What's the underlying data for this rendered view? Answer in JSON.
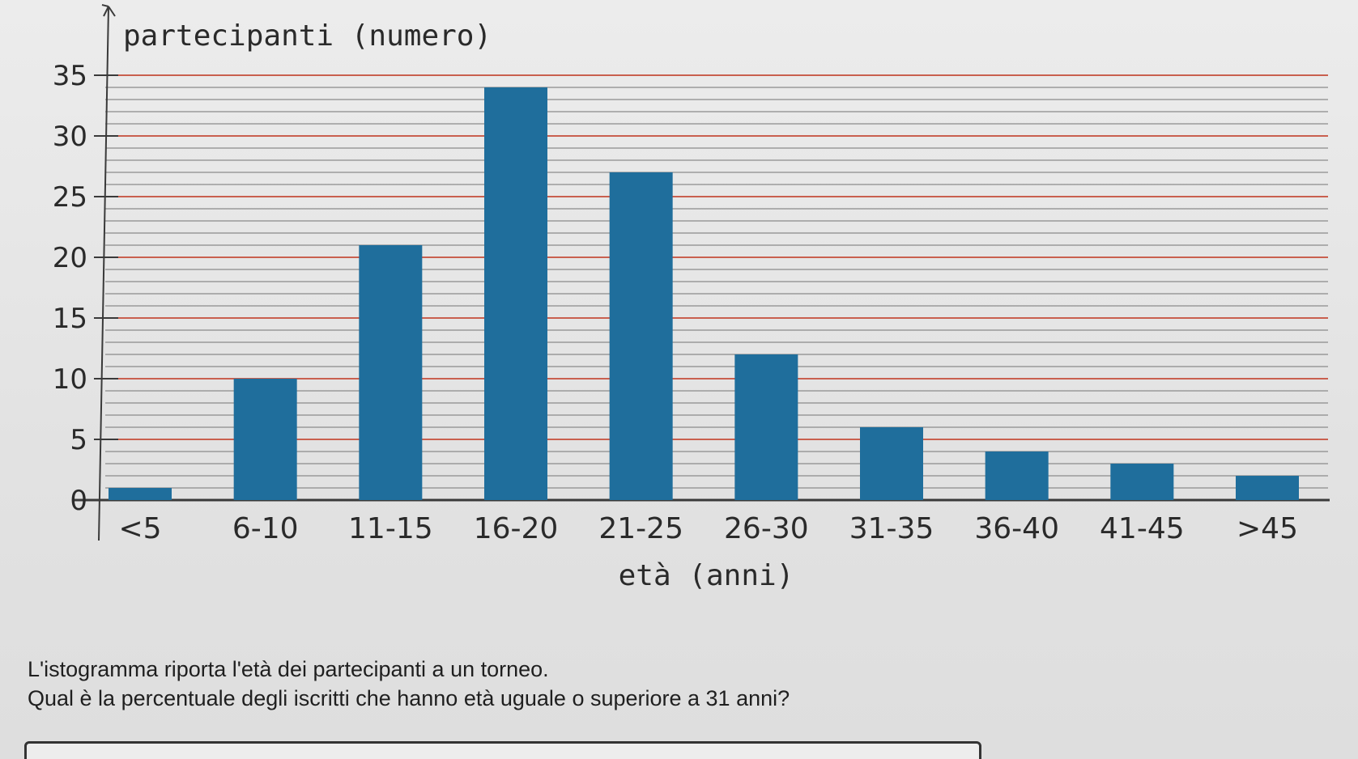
{
  "chart_data": {
    "type": "bar",
    "ylabel": "partecipanti (numero)",
    "xlabel": "età (anni)",
    "categories": [
      "<5",
      "6-10",
      "11-15",
      "16-20",
      "21-25",
      "26-30",
      "31-35",
      "36-40",
      "41-45",
      ">45"
    ],
    "values": [
      1,
      10,
      21,
      34,
      27,
      12,
      6,
      4,
      3,
      2
    ],
    "ylim": [
      0,
      35
    ],
    "yticks": [
      0,
      5,
      10,
      15,
      20,
      25,
      30,
      35
    ],
    "grid": true,
    "bar_color": "#1f6e9c",
    "major_grid_color": "#c9604f",
    "minor_grid_color": "#9a9a9a"
  },
  "question": {
    "line1": "L'istogramma riporta l'età dei partecipanti a un torneo.",
    "line2": "Qual è la percentuale degli iscritti che hanno età uguale o superiore a 31 anni?"
  }
}
